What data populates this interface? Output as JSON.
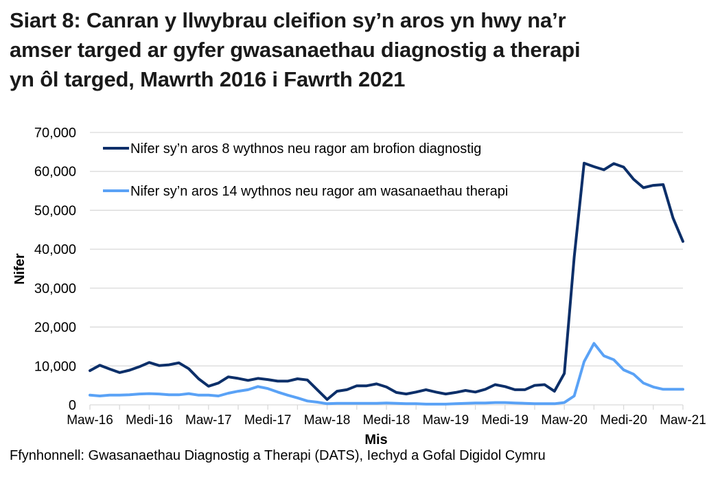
{
  "title": {
    "lines": [
      "Siart 8: Canran y llwybrau cleifion sy’n aros yn hwy na’r",
      "amser targed ar gyfer gwasanaethau diagnostig a therapi",
      "yn ôl targed, Mawrth 2016 i Fawrth 2021"
    ]
  },
  "source": "Ffynhonnell: Gwasanaethau Diagnostig a Therapi (DATS), Iechyd a Gofal Digidol Cymru",
  "colors": {
    "series_dark": "#0c2f69",
    "series_light": "#5aa2f6",
    "grid": "#d9d9d9",
    "axis": "#d9d9d9"
  },
  "chart_data": {
    "type": "line",
    "title": "Siart 8: Canran y llwybrau cleifion sy’n aros yn hwy na’r amser targed ar gyfer gwasanaethau diagnostig a therapi yn ôl targed, Mawrth 2016 i Fawrth 2021",
    "xlabel": "Mis",
    "ylabel": "Nifer",
    "ylim": [
      0,
      70000
    ],
    "yticks": [
      0,
      10000,
      20000,
      30000,
      40000,
      50000,
      60000,
      70000
    ],
    "ytick_labels": [
      "0",
      "10,000",
      "20,000",
      "30,000",
      "40,000",
      "50,000",
      "60,000",
      "70,000"
    ],
    "xtick_labels": [
      "Maw-16",
      "Medi-16",
      "Maw-17",
      "Medi-17",
      "Maw-18",
      "Medi-18",
      "Maw-19",
      "Medi-19",
      "Maw-20",
      "Medi-20",
      "Maw-21"
    ],
    "xtick_label_indices": [
      0,
      6,
      12,
      18,
      24,
      30,
      36,
      42,
      48,
      54,
      60
    ],
    "grid": true,
    "legend_position": "top-left inside",
    "x": [
      "Mar-16",
      "Apr-16",
      "May-16",
      "Jun-16",
      "Jul-16",
      "Aug-16",
      "Sep-16",
      "Oct-16",
      "Nov-16",
      "Dec-16",
      "Jan-17",
      "Feb-17",
      "Mar-17",
      "Apr-17",
      "May-17",
      "Jun-17",
      "Jul-17",
      "Aug-17",
      "Sep-17",
      "Oct-17",
      "Nov-17",
      "Dec-17",
      "Jan-18",
      "Feb-18",
      "Mar-18",
      "Apr-18",
      "May-18",
      "Jun-18",
      "Jul-18",
      "Aug-18",
      "Sep-18",
      "Oct-18",
      "Nov-18",
      "Dec-18",
      "Jan-19",
      "Feb-19",
      "Mar-19",
      "Apr-19",
      "May-19",
      "Jun-19",
      "Jul-19",
      "Aug-19",
      "Sep-19",
      "Oct-19",
      "Nov-19",
      "Dec-19",
      "Jan-20",
      "Feb-20",
      "Mar-20",
      "Apr-20",
      "May-20",
      "Jun-20",
      "Jul-20",
      "Aug-20",
      "Sep-20",
      "Oct-20",
      "Nov-20",
      "Dec-20",
      "Jan-21",
      "Feb-21",
      "Mar-21"
    ],
    "series": [
      {
        "name": "Nifer sy’n aros 8 wythnos neu ragor am brofion diagnostig",
        "color": "#0c2f69",
        "values": [
          8800,
          10200,
          9200,
          8300,
          8900,
          9800,
          10900,
          10100,
          10300,
          10800,
          9300,
          6700,
          4800,
          5600,
          7200,
          6800,
          6300,
          6800,
          6500,
          6100,
          6100,
          6700,
          6400,
          3900,
          1400,
          3500,
          3900,
          4900,
          4900,
          5400,
          4600,
          3200,
          2800,
          3300,
          3900,
          3300,
          2800,
          3200,
          3700,
          3300,
          4000,
          5200,
          4700,
          3900,
          3900,
          5000,
          5200,
          3500,
          8100,
          38000,
          62100,
          61200,
          60400,
          62000,
          61100,
          58000,
          55800,
          56400,
          56600,
          48000,
          42000
        ]
      },
      {
        "name": "Nifer sy’n aros 14 wythnos neu ragor am wasanaethau therapi",
        "color": "#5aa2f6",
        "values": [
          2500,
          2300,
          2500,
          2500,
          2600,
          2800,
          2900,
          2800,
          2600,
          2600,
          2900,
          2500,
          2500,
          2300,
          3000,
          3500,
          3900,
          4700,
          4200,
          3300,
          2500,
          1800,
          1000,
          700,
          300,
          400,
          400,
          400,
          400,
          400,
          500,
          400,
          300,
          300,
          200,
          200,
          200,
          300,
          400,
          500,
          500,
          600,
          600,
          500,
          400,
          300,
          300,
          300,
          600,
          2300,
          11100,
          15800,
          12600,
          11600,
          9000,
          7900,
          5600,
          4600,
          4000,
          4000,
          4000
        ]
      }
    ]
  }
}
